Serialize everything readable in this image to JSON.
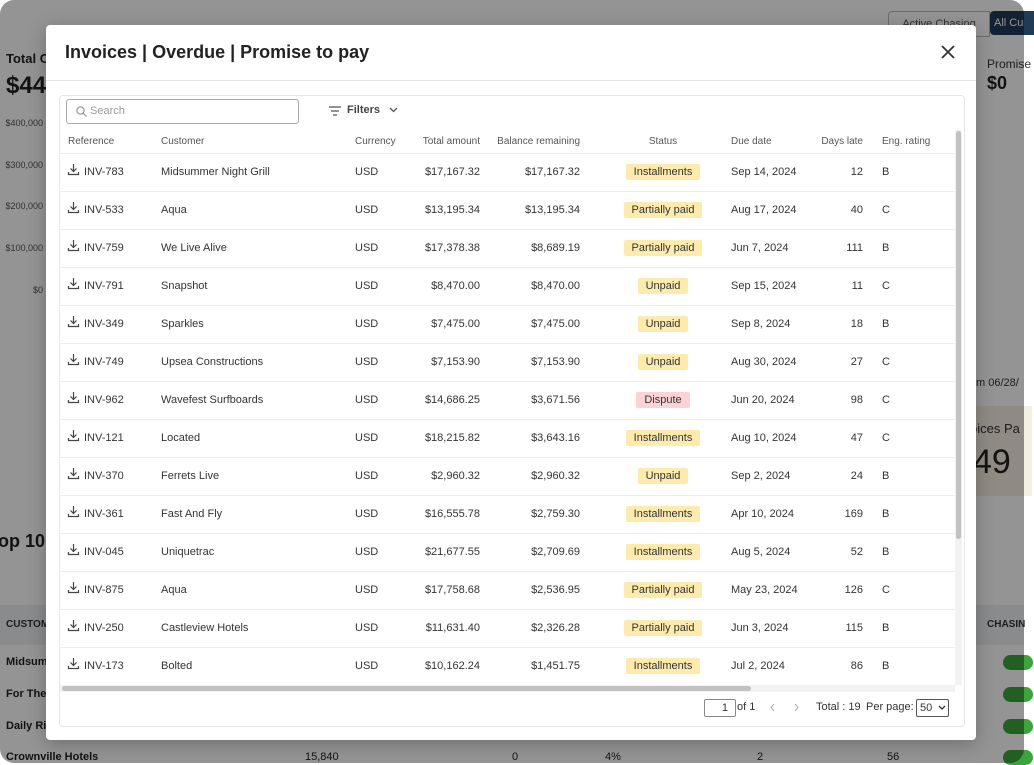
{
  "background": {
    "toggle": [
      "Active Chasing",
      "All Cu"
    ],
    "total_label": "Total C",
    "total_value": "$44",
    "axis_labels": [
      "$400,000",
      "$300,000",
      "$200,000",
      "$100,000",
      "$0"
    ],
    "promise_label": "Promise",
    "promise_value": "$0",
    "date_range": "m 06/28/",
    "invoices_label": "oices Pa",
    "invoices_value": "49",
    "section_title": "op 10 I",
    "table_headers": [
      "CUSTOM",
      "CHASIN"
    ],
    "table_rows": [
      "Midsum",
      "For The",
      "Daily Ri"
    ],
    "last_row": [
      "Crownville Hotels",
      "15,840",
      "0",
      "4%",
      "2",
      "56"
    ]
  },
  "modal": {
    "title": "Invoices | Overdue | Promise to pay",
    "search_placeholder": "Search",
    "filters": "Filters",
    "table": {
      "columns": [
        "Reference",
        "Customer",
        "Currency",
        "Total amount",
        "Balance remaining",
        "Status",
        "Due date",
        "Days late",
        "Eng. rating"
      ],
      "rows": [
        [
          "INV-783",
          "Midsummer Night Grill",
          "USD",
          "$17,167.32",
          "$17,167.32",
          "Installments",
          "Sep 14, 2024",
          "12",
          "B"
        ],
        [
          "INV-533",
          "Aqua",
          "USD",
          "$13,195.34",
          "$13,195.34",
          "Partially paid",
          "Aug 17, 2024",
          "40",
          "C"
        ],
        [
          "INV-759",
          "We Live Alive",
          "USD",
          "$17,378.38",
          "$8,689.19",
          "Partially paid",
          "Jun 7, 2024",
          "111",
          "B"
        ],
        [
          "INV-791",
          "Snapshot",
          "USD",
          "$8,470.00",
          "$8,470.00",
          "Unpaid",
          "Sep 15, 2024",
          "11",
          "C"
        ],
        [
          "INV-349",
          "Sparkles",
          "USD",
          "$7,475.00",
          "$7,475.00",
          "Unpaid",
          "Sep 8, 2024",
          "18",
          "B"
        ],
        [
          "INV-749",
          "Upsea Constructions",
          "USD",
          "$7,153.90",
          "$7,153.90",
          "Unpaid",
          "Aug 30, 2024",
          "27",
          "C"
        ],
        [
          "INV-962",
          "Wavefest Surfboards",
          "USD",
          "$14,686.25",
          "$3,671.56",
          "Dispute",
          "Jun 20, 2024",
          "98",
          "C"
        ],
        [
          "INV-121",
          "Located",
          "USD",
          "$18,215.82",
          "$3,643.16",
          "Installments",
          "Aug 10, 2024",
          "47",
          "C"
        ],
        [
          "INV-370",
          "Ferrets Live",
          "USD",
          "$2,960.32",
          "$2,960.32",
          "Unpaid",
          "Sep 2, 2024",
          "24",
          "B"
        ],
        [
          "INV-361",
          "Fast And Fly",
          "USD",
          "$16,555.78",
          "$2,759.30",
          "Installments",
          "Apr 10, 2024",
          "169",
          "B"
        ],
        [
          "INV-045",
          "Uniquetrac",
          "USD",
          "$21,677.55",
          "$2,709.69",
          "Installments",
          "Aug 5, 2024",
          "52",
          "B"
        ],
        [
          "INV-875",
          "Aqua",
          "USD",
          "$17,758.68",
          "$2,536.95",
          "Partially paid",
          "May 23, 2024",
          "126",
          "C"
        ],
        [
          "INV-250",
          "Castleview Hotels",
          "USD",
          "$11,631.40",
          "$2,326.28",
          "Partially paid",
          "Jun 3, 2024",
          "115",
          "B"
        ],
        [
          "INV-173",
          "Bolted",
          "USD",
          "$10,162.24",
          "$1,451.75",
          "Installments",
          "Jul 2, 2024",
          "86",
          "B"
        ]
      ]
    },
    "pagination": {
      "page": "1",
      "of": "of 1",
      "total": "Total : 19",
      "per_page_label": "Per page:",
      "per_page": "50"
    }
  }
}
